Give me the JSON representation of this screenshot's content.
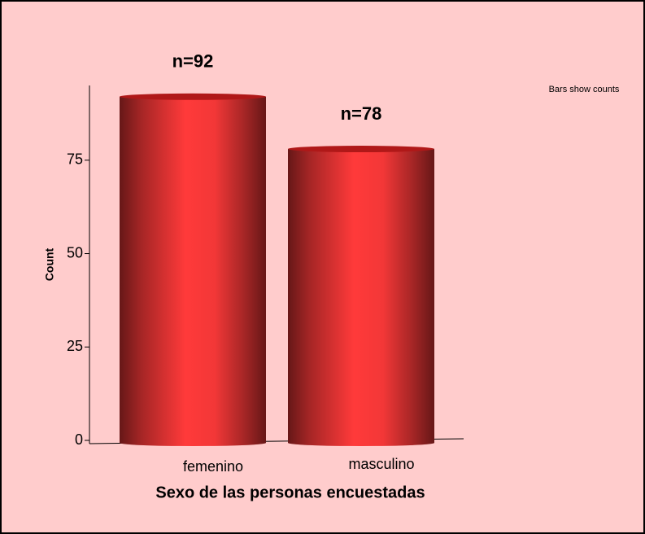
{
  "chart_data": {
    "type": "bar",
    "title": "",
    "annotation": "Bars show counts",
    "x_label": "Sexo de las personas encuestadas",
    "y_label": "Count",
    "categories": [
      "femenino",
      "masculino"
    ],
    "values": [
      92,
      78
    ],
    "value_labels": [
      "n=92",
      "n=78"
    ],
    "color": "#ff3a3a",
    "ylim": [
      0,
      95
    ],
    "yticks": [
      0,
      25,
      50,
      75
    ],
    "grid": false
  }
}
